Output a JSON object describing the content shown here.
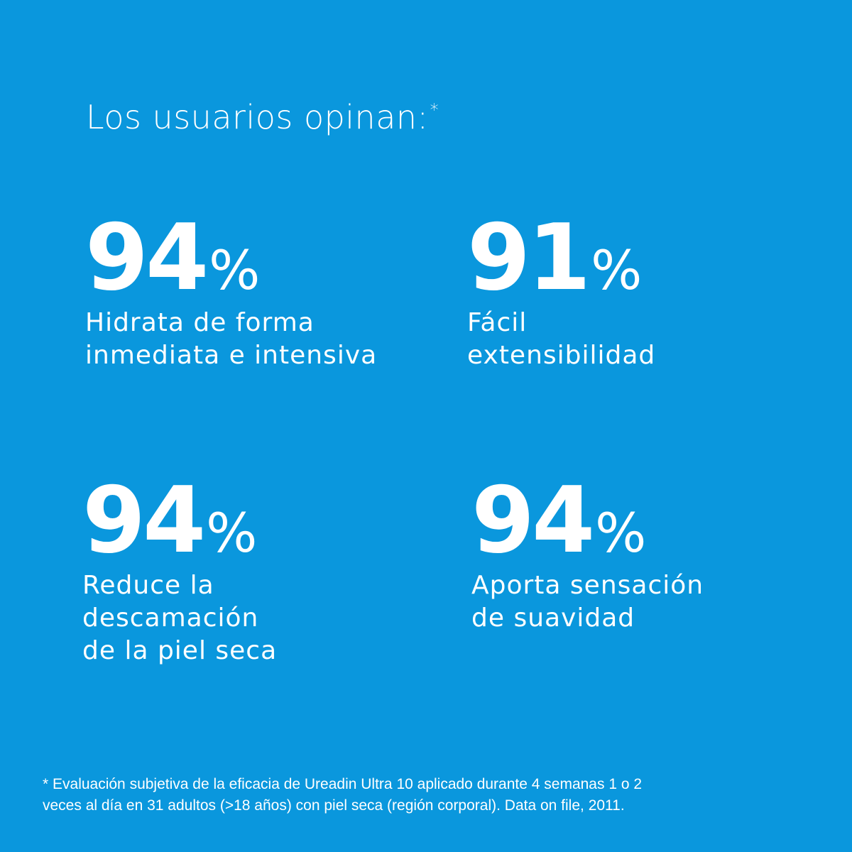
{
  "background_color": "#0a97dd",
  "title": {
    "text": "Los usuarios opinan:",
    "asterisk": "*"
  },
  "stats": [
    {
      "value": "94",
      "unit": "%",
      "label_lines": [
        "Hidrata de forma",
        "inmediata e intensiva"
      ]
    },
    {
      "value": "91",
      "unit": "%",
      "label_lines": [
        "Fácil",
        "extensibilidad"
      ]
    },
    {
      "value": "94",
      "unit": "%",
      "label_lines": [
        "Reduce la",
        "descamación",
        "de la piel seca"
      ]
    },
    {
      "value": "94",
      "unit": "%",
      "label_lines": [
        "Aporta sensación",
        "de suavidad"
      ]
    }
  ],
  "footnote": {
    "lines": [
      "* Evaluación subjetiva de la eficacia de  Ureadin Ultra 10 aplicado durante 4 semanas 1 o 2",
      "veces al día en 31 adultos (>18 años) con piel seca (región  corporal). Data on file, 2011."
    ]
  }
}
